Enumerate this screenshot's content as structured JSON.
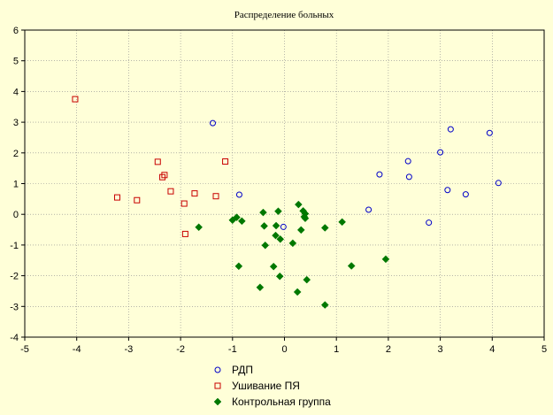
{
  "chart_data": {
    "type": "scatter",
    "title": "Распределение больных",
    "xlabel": "",
    "ylabel": "",
    "xlim": [
      -5,
      5
    ],
    "ylim": [
      -4,
      6
    ],
    "xticks": [
      -5,
      -4,
      -3,
      -2,
      -1,
      0,
      1,
      2,
      3,
      4,
      5
    ],
    "yticks": [
      -4,
      -3,
      -2,
      -1,
      0,
      1,
      2,
      3,
      4,
      5,
      6
    ],
    "grid": true,
    "legend_position": "bottom-center",
    "series": [
      {
        "name": "РДП",
        "marker": "circle",
        "color": "#0000c8",
        "points": [
          [
            -1.38,
            2.97
          ],
          [
            -0.87,
            0.64
          ],
          [
            -0.02,
            -0.41
          ],
          [
            1.62,
            0.15
          ],
          [
            1.83,
            1.3
          ],
          [
            2.38,
            1.73
          ],
          [
            2.4,
            1.22
          ],
          [
            2.78,
            -0.27
          ],
          [
            3.0,
            2.02
          ],
          [
            3.14,
            0.79
          ],
          [
            3.2,
            2.77
          ],
          [
            3.49,
            0.65
          ],
          [
            3.95,
            2.65
          ],
          [
            4.12,
            1.02
          ]
        ]
      },
      {
        "name": "Ушивание ПЯ",
        "marker": "square",
        "color": "#c80000",
        "points": [
          [
            -4.03,
            3.75
          ],
          [
            -3.22,
            0.55
          ],
          [
            -2.84,
            0.46
          ],
          [
            -2.44,
            1.71
          ],
          [
            -2.35,
            1.21
          ],
          [
            -2.31,
            1.28
          ],
          [
            -2.19,
            0.75
          ],
          [
            -1.93,
            0.35
          ],
          [
            -1.91,
            -0.64
          ],
          [
            -1.73,
            0.68
          ],
          [
            -1.32,
            0.59
          ],
          [
            -1.14,
            1.72
          ]
        ]
      },
      {
        "name": "Контрольная группа",
        "marker": "diamond",
        "color": "#007800",
        "points": [
          [
            -1.65,
            -0.42
          ],
          [
            -1.0,
            -0.19
          ],
          [
            -0.92,
            -0.1
          ],
          [
            -0.82,
            -0.22
          ],
          [
            -0.88,
            -1.69
          ],
          [
            -0.47,
            -2.38
          ],
          [
            -0.41,
            0.06
          ],
          [
            -0.39,
            -0.38
          ],
          [
            -0.37,
            -1.01
          ],
          [
            -0.21,
            -1.7
          ],
          [
            -0.16,
            -0.37
          ],
          [
            -0.17,
            -0.69
          ],
          [
            -0.12,
            0.1
          ],
          [
            -0.08,
            -0.81
          ],
          [
            -0.09,
            -2.02
          ],
          [
            0.16,
            -0.94
          ],
          [
            0.27,
            0.32
          ],
          [
            0.25,
            -2.53
          ],
          [
            0.32,
            -0.51
          ],
          [
            0.36,
            0.11
          ],
          [
            0.38,
            -0.08
          ],
          [
            0.4,
            0.02
          ],
          [
            0.4,
            -0.13
          ],
          [
            0.43,
            -2.13
          ],
          [
            0.78,
            -0.44
          ],
          [
            0.78,
            -2.95
          ],
          [
            1.11,
            -0.25
          ],
          [
            1.29,
            -1.68
          ],
          [
            1.95,
            -1.46
          ]
        ]
      }
    ]
  }
}
